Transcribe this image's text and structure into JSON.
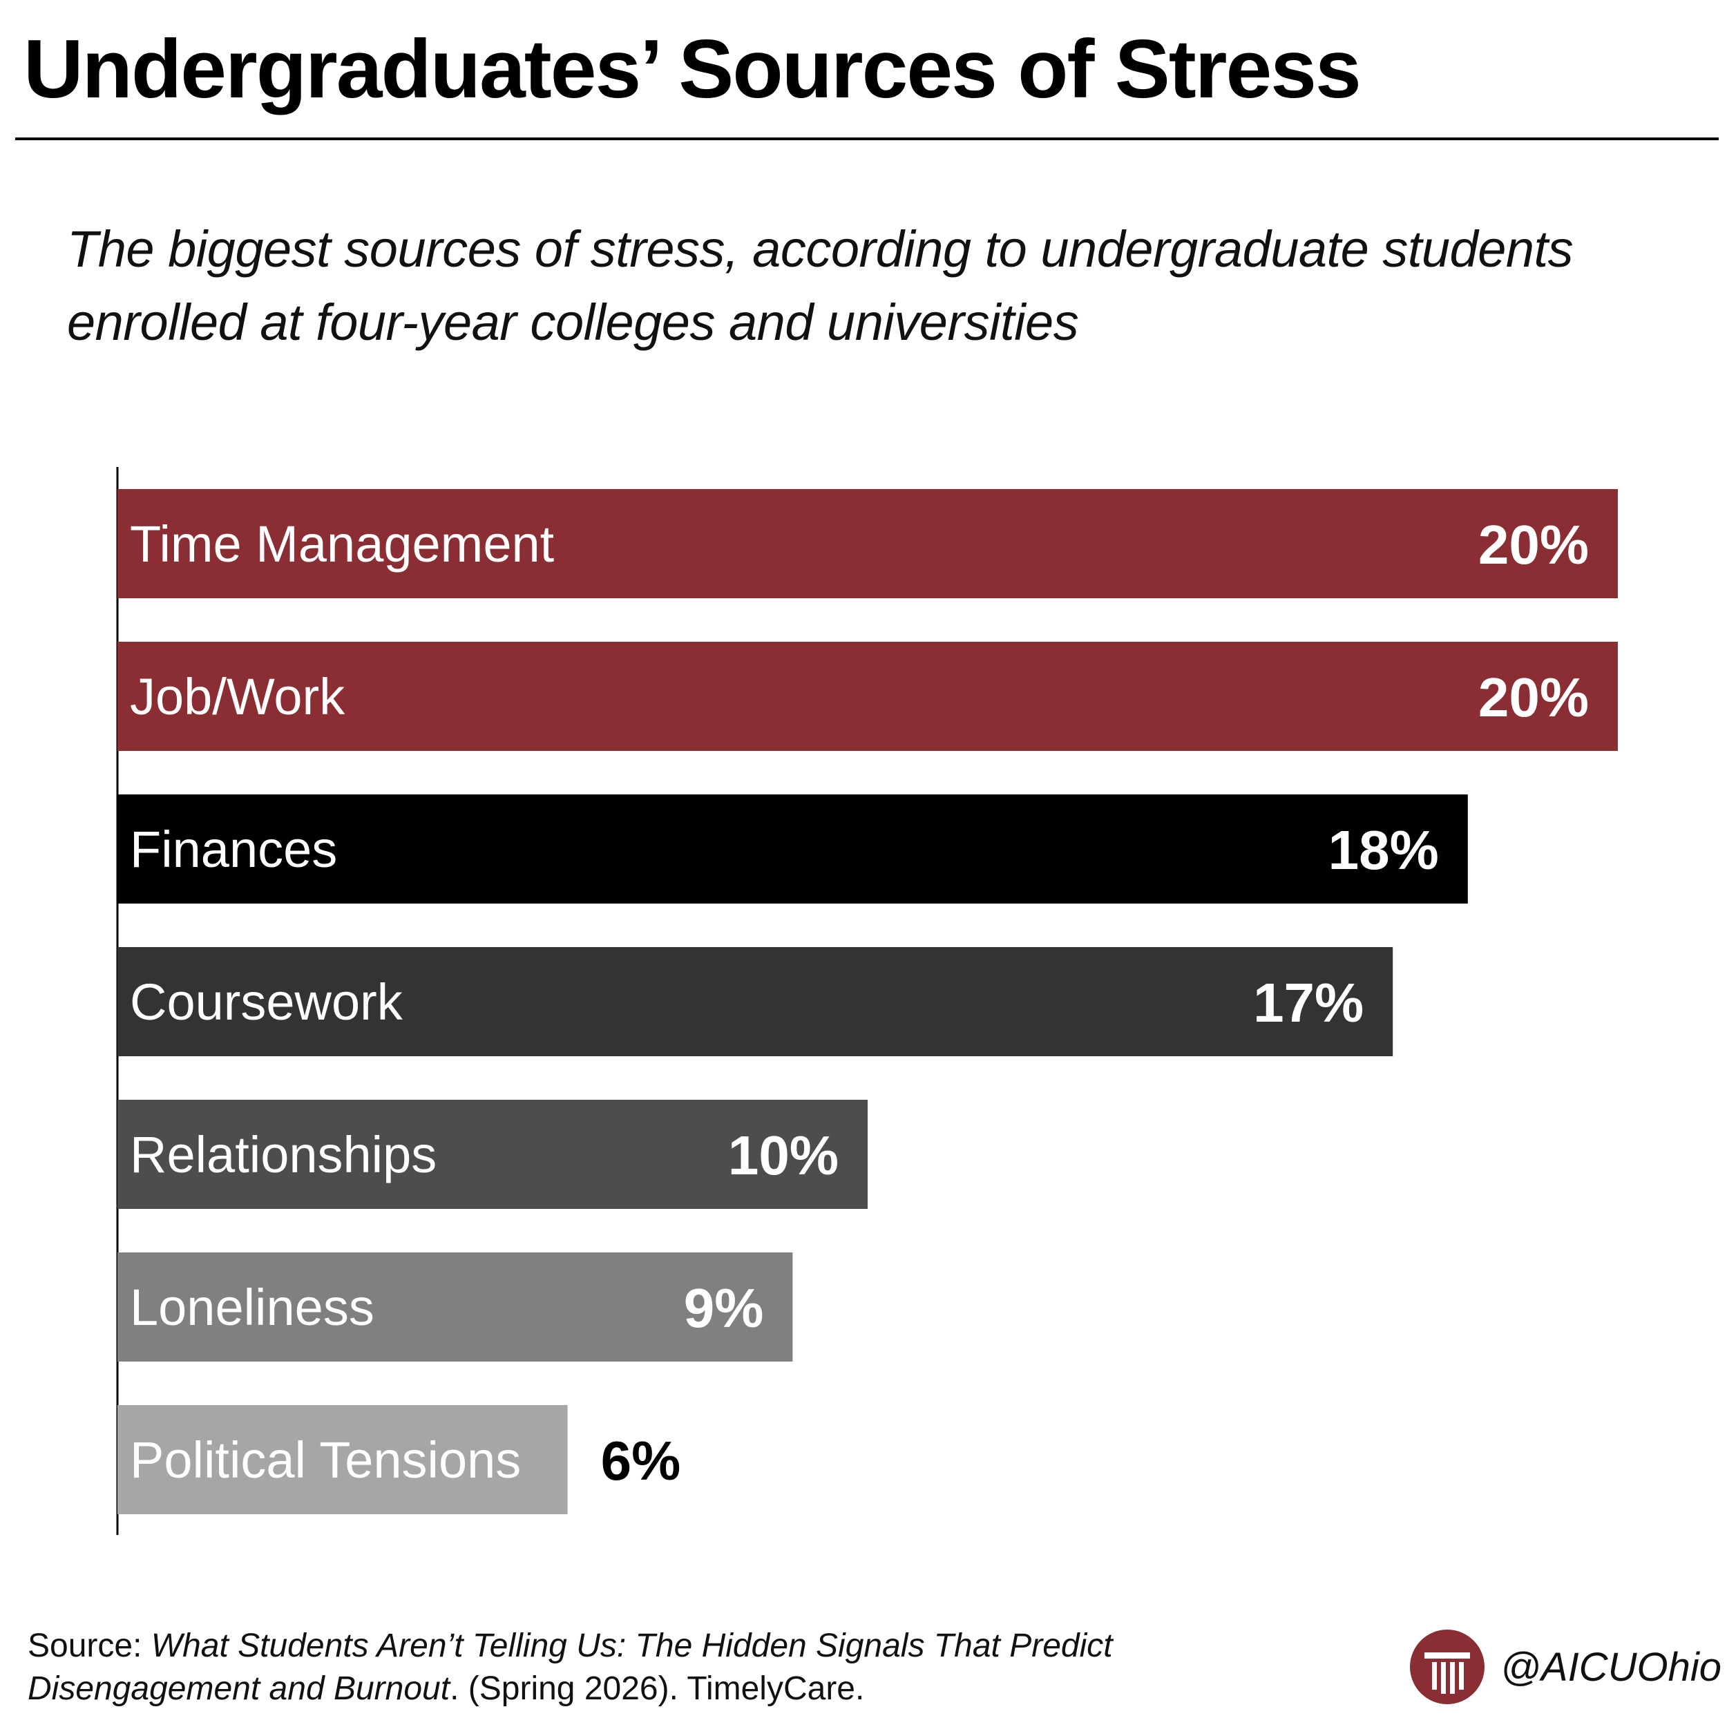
{
  "title": "Undergraduates’ Sources of Stress",
  "subtitle": "The biggest sources of stress, according to undergraduate students enrolled at four-year colleges and universities",
  "chart_data": {
    "type": "bar",
    "orientation": "horizontal",
    "categories": [
      "Time Management",
      "Job/Work",
      "Finances",
      "Coursework",
      "Relationships",
      "Loneliness",
      "Political Tensions"
    ],
    "values": [
      20,
      20,
      18,
      17,
      10,
      9,
      6
    ],
    "value_labels": [
      "20%",
      "20%",
      "18%",
      "17%",
      "10%",
      "9%",
      "6%"
    ],
    "unit": "%",
    "bar_colors": [
      "#8b2e33",
      "#8b2e33",
      "#000000",
      "#333333",
      "#4d4d4d",
      "#808080",
      "#a6a6a6"
    ],
    "value_label_colors": [
      "#ffffff",
      "#ffffff",
      "#ffffff",
      "#ffffff",
      "#ffffff",
      "#ffffff",
      "#000000"
    ],
    "value_label_positions": [
      "inside-end",
      "inside-end",
      "inside-end",
      "inside-end",
      "inside-end",
      "inside-end",
      "outside-end"
    ],
    "xlim": [
      0,
      20
    ],
    "grid": false,
    "legend": "none",
    "title": "Undergraduates’ Sources of Stress",
    "xlabel": "",
    "ylabel": ""
  },
  "source": {
    "prefix": "Source: ",
    "title": "What Students Aren’t Telling Us: The Hidden Signals That Predict Disengagement and Burnout",
    "suffix": ". (Spring 2026). TimelyCare."
  },
  "brand": {
    "handle": "@AICUOhio",
    "logo_icon": "aicu-column-logo-icon",
    "logo_color": "#8b2e33"
  }
}
